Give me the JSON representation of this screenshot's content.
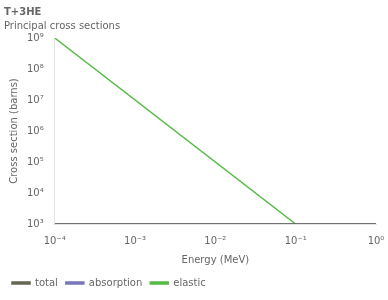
{
  "chart_data": {
    "type": "line",
    "title": "T+3HE",
    "subtitle": "Principal cross sections",
    "x_label": "Energy (MeV)",
    "y_label": "Cross section (barns)",
    "log": true,
    "grid": false,
    "legend": "lower left",
    "series": [
      {
        "name": "total",
        "color": "#666655",
        "x": [
          0.0001,
          1.0
        ],
        "values": [
          1000.0,
          1000.0
        ]
      },
      {
        "name": "absorption",
        "color": "#7777bb",
        "x": [
          0.0001,
          1.0
        ],
        "values": [
          1000.0,
          1000.0
        ]
      },
      {
        "name": "elastic",
        "color": "#55bb44",
        "x": [
          0.0001,
          0.1
        ],
        "values": [
          1000000000.0,
          1000.0
        ]
      }
    ],
    "xlim": [
      0.0001,
      1
    ],
    "xticks": [
      {
        "value": 0.0001,
        "label": "10⁻⁴"
      },
      {
        "value": 0.001,
        "label": "10⁻³"
      },
      {
        "value": 0.01,
        "label": "10⁻²"
      },
      {
        "value": 0.1,
        "label": "10⁻¹"
      },
      {
        "value": 1,
        "label": "10⁰"
      }
    ],
    "ylim": [
      1000,
      1000000000
    ],
    "yticks": [
      {
        "value": 1000,
        "label": "10³"
      },
      {
        "value": 10000,
        "label": "10⁴"
      },
      {
        "value": 100000,
        "label": "10⁵"
      },
      {
        "value": 1000000,
        "label": "10⁶"
      },
      {
        "value": 10000000,
        "label": "10⁷"
      },
      {
        "value": 100000000,
        "label": "10⁸"
      },
      {
        "value": 1000000000,
        "label": "10⁹"
      }
    ]
  }
}
